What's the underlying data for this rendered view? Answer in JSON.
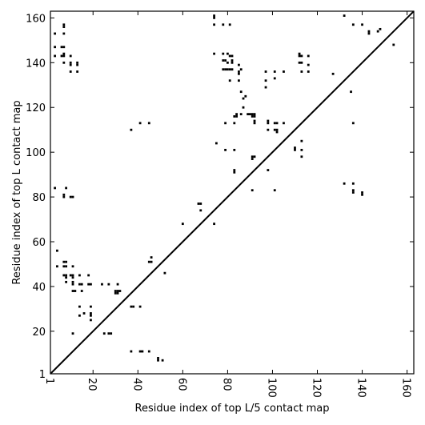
{
  "chart_data": {
    "type": "scatter",
    "marker": "square",
    "title": "",
    "xlabel": "Residue index of top L/5 contact map",
    "ylabel": "Residue index of top L contact map",
    "xlim": [
      1,
      163
    ],
    "ylim": [
      1,
      163
    ],
    "xticks": [
      1,
      20,
      40,
      60,
      80,
      100,
      120,
      140,
      160
    ],
    "yticks": [
      1,
      20,
      40,
      60,
      80,
      100,
      120,
      140,
      160
    ],
    "xtick_labels": [
      "1",
      "20",
      "40",
      "60",
      "80",
      "100",
      "120",
      "140",
      "160"
    ],
    "ytick_labels": [
      "1",
      "20",
      "40",
      "60",
      "80",
      "100",
      "120",
      "140",
      "160"
    ],
    "xtick_rotation": -90,
    "grid": false,
    "diagonal": {
      "from": [
        1,
        1
      ],
      "to": [
        163,
        163
      ]
    },
    "marker_color": "#000000",
    "points": [
      [
        3,
        153
      ],
      [
        3,
        147
      ],
      [
        3,
        143
      ],
      [
        3,
        84
      ],
      [
        6,
        147
      ],
      [
        6,
        143
      ],
      [
        7,
        157
      ],
      [
        7,
        156
      ],
      [
        7,
        153
      ],
      [
        7,
        147
      ],
      [
        7,
        144
      ],
      [
        7,
        143
      ],
      [
        7,
        140
      ],
      [
        10,
        143
      ],
      [
        10,
        140
      ],
      [
        10,
        139
      ],
      [
        10,
        136
      ],
      [
        13,
        140
      ],
      [
        13,
        139
      ],
      [
        13,
        136
      ],
      [
        37,
        110
      ],
      [
        41,
        113
      ],
      [
        45,
        113
      ],
      [
        74,
        161
      ],
      [
        74,
        160
      ],
      [
        74,
        157
      ],
      [
        78,
        157
      ],
      [
        81,
        157
      ],
      [
        74,
        144
      ],
      [
        78,
        144
      ],
      [
        80,
        144
      ],
      [
        78,
        141
      ],
      [
        79,
        141
      ],
      [
        80,
        140
      ],
      [
        78,
        137
      ],
      [
        79,
        137
      ],
      [
        80,
        137
      ],
      [
        81,
        137
      ],
      [
        82,
        137
      ],
      [
        82,
        143
      ],
      [
        81,
        143
      ],
      [
        82,
        141
      ],
      [
        82,
        140
      ],
      [
        85,
        139
      ],
      [
        86,
        137
      ],
      [
        85,
        136
      ],
      [
        85,
        135
      ],
      [
        81,
        132
      ],
      [
        85,
        132
      ],
      [
        86,
        127
      ],
      [
        88,
        125
      ],
      [
        87,
        124
      ],
      [
        87,
        120
      ],
      [
        84,
        117
      ],
      [
        86,
        117
      ],
      [
        89,
        117
      ],
      [
        90,
        117
      ],
      [
        91,
        117
      ],
      [
        92,
        117
      ],
      [
        91,
        116
      ],
      [
        92,
        116
      ],
      [
        83,
        116
      ],
      [
        84,
        116
      ],
      [
        79,
        113
      ],
      [
        83,
        113
      ],
      [
        92,
        114
      ],
      [
        92,
        113
      ],
      [
        75,
        104
      ],
      [
        79,
        101
      ],
      [
        83,
        101
      ],
      [
        83,
        92
      ],
      [
        83,
        91
      ],
      [
        91,
        98
      ],
      [
        92,
        98
      ],
      [
        91,
        97
      ],
      [
        91,
        83
      ],
      [
        97,
        136
      ],
      [
        101,
        136
      ],
      [
        105,
        136
      ],
      [
        97,
        132
      ],
      [
        101,
        133
      ],
      [
        97,
        129
      ],
      [
        98,
        114
      ],
      [
        98,
        113
      ],
      [
        101,
        113
      ],
      [
        102,
        113
      ],
      [
        105,
        113
      ],
      [
        98,
        110
      ],
      [
        101,
        110
      ],
      [
        102,
        110
      ],
      [
        102,
        109
      ],
      [
        98,
        92
      ],
      [
        101,
        83
      ],
      [
        110,
        102
      ],
      [
        110,
        101
      ],
      [
        113,
        105
      ],
      [
        113,
        101
      ],
      [
        113,
        98
      ],
      [
        112,
        144
      ],
      [
        112,
        143
      ],
      [
        113,
        143
      ],
      [
        116,
        143
      ],
      [
        113,
        140
      ],
      [
        112,
        140
      ],
      [
        116,
        139
      ],
      [
        113,
        136
      ],
      [
        116,
        136
      ],
      [
        127,
        135
      ],
      [
        132,
        161
      ],
      [
        136,
        157
      ],
      [
        140,
        157
      ],
      [
        143,
        154
      ],
      [
        143,
        153
      ],
      [
        147,
        154
      ],
      [
        148,
        155
      ],
      [
        154,
        148
      ],
      [
        135,
        127
      ],
      [
        136,
        113
      ],
      [
        132,
        86
      ],
      [
        136,
        86
      ],
      [
        136,
        83
      ],
      [
        136,
        82
      ],
      [
        140,
        82
      ],
      [
        140,
        81
      ],
      [
        8,
        84
      ],
      [
        7,
        81
      ],
      [
        7,
        80
      ],
      [
        10,
        80
      ],
      [
        11,
        80
      ],
      [
        60,
        68
      ],
      [
        67,
        77
      ],
      [
        68,
        77
      ],
      [
        68,
        74
      ],
      [
        74,
        68
      ],
      [
        4,
        56
      ],
      [
        4,
        49
      ],
      [
        7,
        51
      ],
      [
        8,
        51
      ],
      [
        7,
        49
      ],
      [
        8,
        49
      ],
      [
        11,
        49
      ],
      [
        14,
        45
      ],
      [
        7,
        45
      ],
      [
        8,
        45
      ],
      [
        10,
        45
      ],
      [
        11,
        45
      ],
      [
        8,
        44
      ],
      [
        11,
        44
      ],
      [
        18,
        45
      ],
      [
        8,
        42
      ],
      [
        11,
        42
      ],
      [
        11,
        41
      ],
      [
        14,
        41
      ],
      [
        15,
        41
      ],
      [
        18,
        41
      ],
      [
        19,
        41
      ],
      [
        11,
        38
      ],
      [
        12,
        38
      ],
      [
        15,
        38
      ],
      [
        14,
        31
      ],
      [
        19,
        31
      ],
      [
        14,
        27
      ],
      [
        16,
        28
      ],
      [
        19,
        28
      ],
      [
        19,
        27
      ],
      [
        19,
        25
      ],
      [
        11,
        19
      ],
      [
        24,
        41
      ],
      [
        27,
        41
      ],
      [
        31,
        41
      ],
      [
        30,
        38
      ],
      [
        31,
        38
      ],
      [
        32,
        38
      ],
      [
        30,
        37
      ],
      [
        31,
        37
      ],
      [
        25,
        19
      ],
      [
        27,
        19
      ],
      [
        28,
        19
      ],
      [
        37,
        31
      ],
      [
        38,
        31
      ],
      [
        41,
        31
      ],
      [
        37,
        11
      ],
      [
        41,
        11
      ],
      [
        42,
        11
      ],
      [
        45,
        11
      ],
      [
        49,
        8
      ],
      [
        49,
        7
      ],
      [
        51,
        7
      ],
      [
        45,
        51
      ],
      [
        46,
        51
      ],
      [
        46,
        53
      ],
      [
        52,
        46
      ]
    ]
  }
}
